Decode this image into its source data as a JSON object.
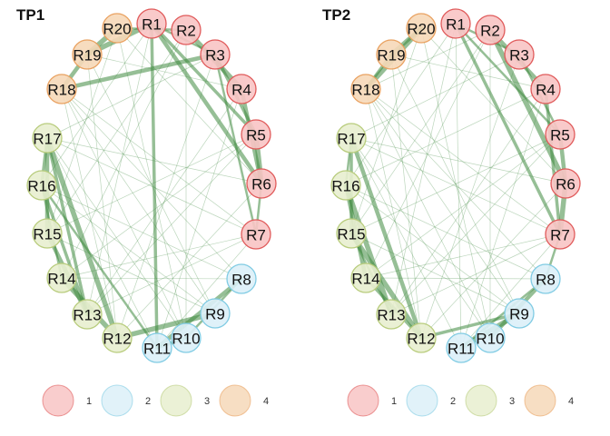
{
  "panels": [
    {
      "title": "TP1",
      "strong_edges": [
        [
          "R1",
          "R3"
        ],
        [
          "R1",
          "R5"
        ],
        [
          "R1",
          "R6"
        ],
        [
          "R2",
          "R4"
        ],
        [
          "R3",
          "R7"
        ],
        [
          "R3",
          "R5"
        ],
        [
          "R4",
          "R6"
        ],
        [
          "R5",
          "R6"
        ],
        [
          "R6",
          "R7"
        ],
        [
          "R1",
          "R11"
        ],
        [
          "R18",
          "R3"
        ],
        [
          "R19",
          "R1"
        ],
        [
          "R20",
          "R2"
        ],
        [
          "R17",
          "R16"
        ],
        [
          "R17",
          "R15"
        ],
        [
          "R17",
          "R12"
        ],
        [
          "R16",
          "R14"
        ],
        [
          "R16",
          "R13"
        ],
        [
          "R15",
          "R13"
        ],
        [
          "R14",
          "R12"
        ],
        [
          "R16",
          "R11"
        ],
        [
          "R17",
          "R13"
        ],
        [
          "R11",
          "R8"
        ],
        [
          "R12",
          "R9"
        ],
        [
          "R10",
          "R8"
        ],
        [
          "R11",
          "R10"
        ],
        [
          "R18",
          "R19"
        ],
        [
          "R19",
          "R20"
        ]
      ],
      "weak_edges": [
        [
          "R1",
          "R16"
        ],
        [
          "R2",
          "R14"
        ],
        [
          "R3",
          "R12"
        ],
        [
          "R4",
          "R13"
        ],
        [
          "R5",
          "R15"
        ],
        [
          "R6",
          "R17"
        ],
        [
          "R7",
          "R11"
        ],
        [
          "R7",
          "R14"
        ],
        [
          "R8",
          "R18"
        ],
        [
          "R9",
          "R19"
        ],
        [
          "R10",
          "R20"
        ],
        [
          "R11",
          "R17"
        ],
        [
          "R12",
          "R18"
        ],
        [
          "R13",
          "R7"
        ],
        [
          "R14",
          "R5"
        ],
        [
          "R15",
          "R9"
        ],
        [
          "R16",
          "R8"
        ],
        [
          "R17",
          "R10"
        ],
        [
          "R18",
          "R9"
        ],
        [
          "R19",
          "R12"
        ],
        [
          "R20",
          "R15"
        ],
        [
          "R2",
          "R10"
        ],
        [
          "R4",
          "R11"
        ],
        [
          "R6",
          "R12"
        ],
        [
          "R3",
          "R17"
        ],
        [
          "R5",
          "R13"
        ],
        [
          "R8",
          "R14"
        ],
        [
          "R9",
          "R16"
        ],
        [
          "R18",
          "R7"
        ],
        [
          "R20",
          "R6"
        ],
        [
          "R19",
          "R4"
        ],
        [
          "R2",
          "R15"
        ],
        [
          "R1",
          "R13"
        ],
        [
          "R18",
          "R10"
        ],
        [
          "R17",
          "R7"
        ]
      ]
    },
    {
      "title": "TP2",
      "strong_edges": [
        [
          "R1",
          "R3"
        ],
        [
          "R1",
          "R7"
        ],
        [
          "R2",
          "R4"
        ],
        [
          "R2",
          "R6"
        ],
        [
          "R3",
          "R5"
        ],
        [
          "R4",
          "R7"
        ],
        [
          "R5",
          "R6"
        ],
        [
          "R6",
          "R7"
        ],
        [
          "R1",
          "R5"
        ],
        [
          "R18",
          "R19"
        ],
        [
          "R19",
          "R20"
        ],
        [
          "R18",
          "R20"
        ],
        [
          "R17",
          "R16"
        ],
        [
          "R17",
          "R15"
        ],
        [
          "R16",
          "R14"
        ],
        [
          "R16",
          "R13"
        ],
        [
          "R15",
          "R13"
        ],
        [
          "R14",
          "R12"
        ],
        [
          "R17",
          "R12"
        ],
        [
          "R15",
          "R12"
        ],
        [
          "R11",
          "R8"
        ],
        [
          "R12",
          "R9"
        ],
        [
          "R10",
          "R8"
        ],
        [
          "R11",
          "R9"
        ],
        [
          "R7",
          "R8"
        ]
      ],
      "weak_edges": [
        [
          "R1",
          "R16"
        ],
        [
          "R2",
          "R14"
        ],
        [
          "R3",
          "R12"
        ],
        [
          "R4",
          "R13"
        ],
        [
          "R5",
          "R15"
        ],
        [
          "R6",
          "R17"
        ],
        [
          "R7",
          "R11"
        ],
        [
          "R7",
          "R14"
        ],
        [
          "R8",
          "R18"
        ],
        [
          "R9",
          "R19"
        ],
        [
          "R10",
          "R20"
        ],
        [
          "R11",
          "R17"
        ],
        [
          "R12",
          "R18"
        ],
        [
          "R13",
          "R7"
        ],
        [
          "R14",
          "R5"
        ],
        [
          "R15",
          "R9"
        ],
        [
          "R16",
          "R8"
        ],
        [
          "R17",
          "R10"
        ],
        [
          "R18",
          "R9"
        ],
        [
          "R19",
          "R12"
        ],
        [
          "R20",
          "R15"
        ],
        [
          "R2",
          "R10"
        ],
        [
          "R4",
          "R11"
        ],
        [
          "R6",
          "R12"
        ],
        [
          "R3",
          "R17"
        ],
        [
          "R5",
          "R13"
        ],
        [
          "R8",
          "R14"
        ],
        [
          "R9",
          "R16"
        ],
        [
          "R18",
          "R7"
        ],
        [
          "R20",
          "R6"
        ],
        [
          "R19",
          "R4"
        ],
        [
          "R2",
          "R15"
        ],
        [
          "R1",
          "R13"
        ],
        [
          "R18",
          "R10"
        ],
        [
          "R17",
          "R7"
        ],
        [
          "R1",
          "R11"
        ],
        [
          "R2",
          "R18"
        ],
        [
          "R4",
          "R16"
        ]
      ]
    }
  ],
  "nodes": [
    {
      "id": "R1",
      "group": 1
    },
    {
      "id": "R2",
      "group": 1
    },
    {
      "id": "R3",
      "group": 1
    },
    {
      "id": "R4",
      "group": 1
    },
    {
      "id": "R5",
      "group": 1
    },
    {
      "id": "R6",
      "group": 1
    },
    {
      "id": "R7",
      "group": 1
    },
    {
      "id": "R8",
      "group": 2
    },
    {
      "id": "R9",
      "group": 2
    },
    {
      "id": "R10",
      "group": 2
    },
    {
      "id": "R11",
      "group": 2
    },
    {
      "id": "R12",
      "group": 3
    },
    {
      "id": "R13",
      "group": 3
    },
    {
      "id": "R14",
      "group": 3
    },
    {
      "id": "R15",
      "group": 3
    },
    {
      "id": "R16",
      "group": 3
    },
    {
      "id": "R17",
      "group": 3
    },
    {
      "id": "R18",
      "group": 4
    },
    {
      "id": "R19",
      "group": 4
    },
    {
      "id": "R20",
      "group": 4
    }
  ],
  "groups": [
    {
      "label": "1",
      "fill": "#f8c4c4",
      "stroke": "#e05a5a"
    },
    {
      "label": "2",
      "fill": "#dcf0f8",
      "stroke": "#7fcbe3"
    },
    {
      "label": "3",
      "fill": "#e8eecf",
      "stroke": "#b8cc7c"
    },
    {
      "label": "4",
      "fill": "#f6d8b8",
      "stroke": "#e9a160"
    }
  ],
  "colors": {
    "edge": "#3f8a3f",
    "legend_fill_alpha": 0.85
  }
}
